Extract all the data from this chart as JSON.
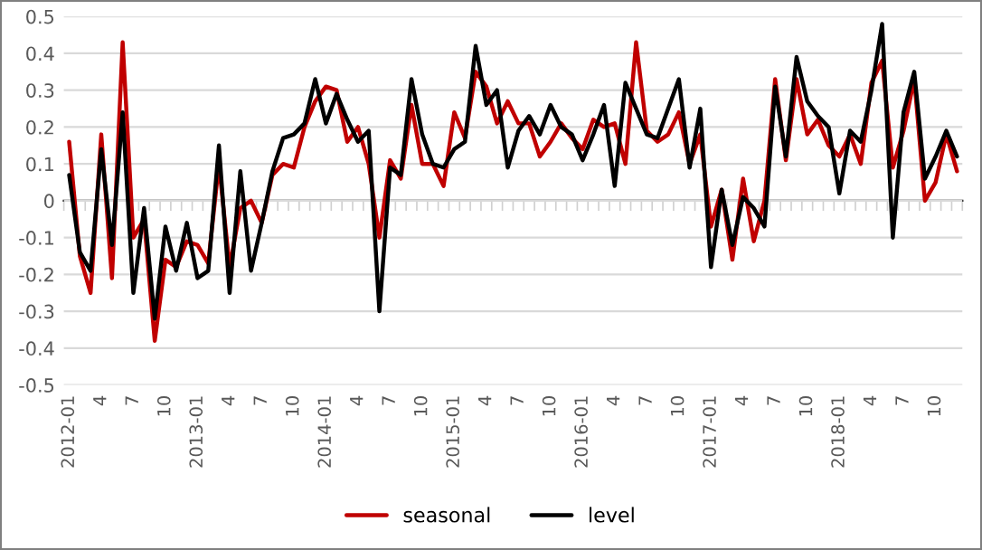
{
  "chart_data": {
    "type": "line",
    "categories": [
      "2012-01",
      null,
      null,
      "4",
      null,
      null,
      "7",
      null,
      null,
      "10",
      null,
      null,
      "2013-01",
      null,
      null,
      "4",
      null,
      null,
      "7",
      null,
      null,
      "10",
      null,
      null,
      "2014-01",
      null,
      null,
      "4",
      null,
      null,
      "7",
      null,
      null,
      "10",
      null,
      null,
      "2015-01",
      null,
      null,
      "4",
      null,
      null,
      "7",
      null,
      null,
      "10",
      null,
      null,
      "2016-01",
      null,
      null,
      "4",
      null,
      null,
      "7",
      null,
      null,
      "10",
      null,
      null,
      "2017-01",
      null,
      null,
      "4",
      null,
      null,
      "7",
      null,
      null,
      "10",
      null,
      null,
      "2018-01",
      null,
      null,
      "4",
      null,
      null,
      "7",
      null,
      null,
      "10",
      null,
      null
    ],
    "series": [
      {
        "name": "seasonal",
        "color": "#c00000",
        "values": [
          0.16,
          -0.15,
          -0.25,
          0.18,
          -0.21,
          0.43,
          -0.1,
          -0.05,
          -0.38,
          -0.16,
          -0.18,
          -0.11,
          -0.12,
          -0.17,
          0.1,
          -0.18,
          -0.02,
          0.0,
          -0.06,
          0.07,
          0.1,
          0.09,
          0.2,
          0.27,
          0.31,
          0.3,
          0.16,
          0.2,
          0.1,
          -0.1,
          0.11,
          0.06,
          0.26,
          0.1,
          0.1,
          0.04,
          0.24,
          0.17,
          0.35,
          0.31,
          0.21,
          0.27,
          0.21,
          0.21,
          0.12,
          0.16,
          0.21,
          0.17,
          0.14,
          0.22,
          0.2,
          0.21,
          0.1,
          0.43,
          0.19,
          0.16,
          0.18,
          0.24,
          0.1,
          0.18,
          -0.07,
          0.03,
          -0.16,
          0.06,
          -0.11,
          0.0,
          0.33,
          0.11,
          0.33,
          0.18,
          0.22,
          0.15,
          0.12,
          0.18,
          0.1,
          0.32,
          0.38,
          0.09,
          0.19,
          0.33,
          0.0,
          0.05,
          0.18,
          0.08
        ]
      },
      {
        "name": "level",
        "color": "#000000",
        "values": [
          0.07,
          -0.14,
          -0.19,
          0.14,
          -0.12,
          0.24,
          -0.25,
          -0.02,
          -0.32,
          -0.07,
          -0.19,
          -0.06,
          -0.21,
          -0.19,
          0.15,
          -0.25,
          0.08,
          -0.19,
          -0.06,
          0.08,
          0.17,
          0.18,
          0.21,
          0.33,
          0.21,
          0.29,
          0.22,
          0.16,
          0.19,
          -0.3,
          0.09,
          0.07,
          0.33,
          0.18,
          0.1,
          0.09,
          0.14,
          0.16,
          0.42,
          0.26,
          0.3,
          0.09,
          0.19,
          0.23,
          0.18,
          0.26,
          0.2,
          0.18,
          0.11,
          0.18,
          0.26,
          0.04,
          0.32,
          0.25,
          0.18,
          0.17,
          0.25,
          0.33,
          0.09,
          0.25,
          -0.18,
          0.03,
          -0.12,
          0.01,
          -0.02,
          -0.07,
          0.31,
          0.12,
          0.39,
          0.27,
          0.23,
          0.2,
          0.02,
          0.19,
          0.16,
          0.3,
          0.48,
          -0.1,
          0.24,
          0.35,
          0.06,
          0.12,
          0.19,
          0.12
        ]
      }
    ],
    "ylim": [
      -0.5,
      0.5
    ],
    "yticks": [
      -0.5,
      -0.4,
      -0.3,
      -0.2,
      -0.1,
      0,
      0.1,
      0.2,
      0.3,
      0.4,
      0.5
    ],
    "grid": "y",
    "legend": "bottom",
    "marker": "none",
    "line_style": "solid"
  }
}
